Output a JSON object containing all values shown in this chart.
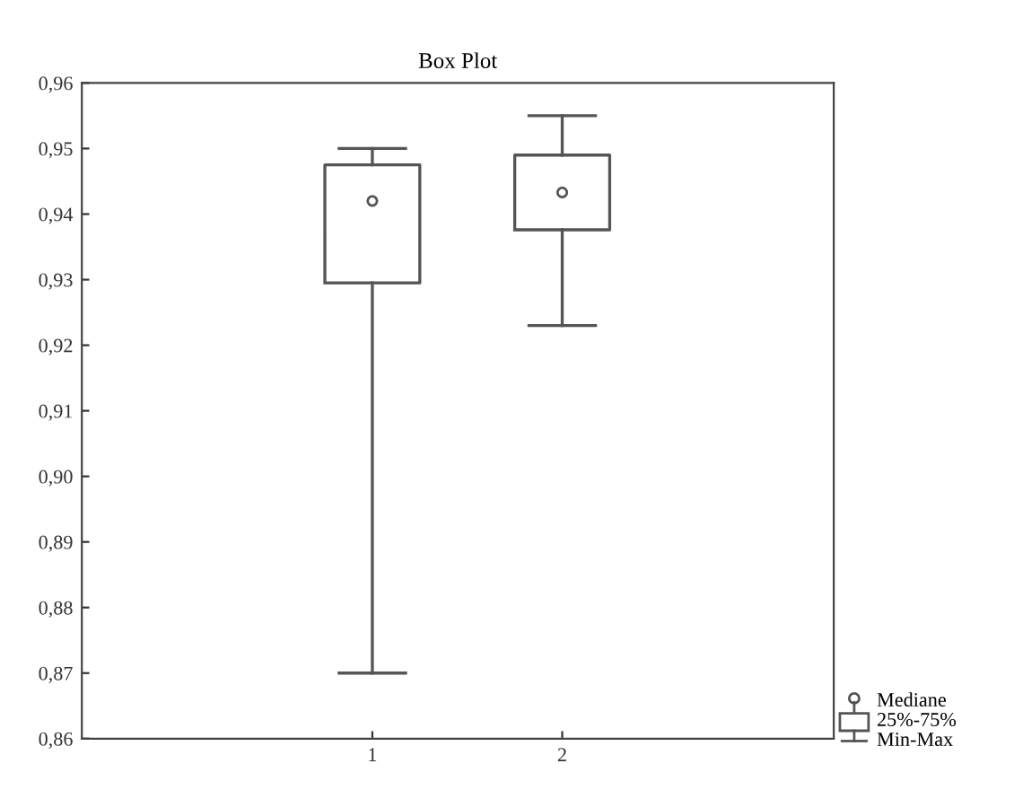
{
  "chart_data": {
    "type": "box",
    "title": "Box Plot",
    "categories": [
      "1",
      "2"
    ],
    "boxes": [
      {
        "low": 0.87,
        "q1": 0.9295,
        "median": 0.942,
        "q3": 0.9475,
        "high": 0.95
      },
      {
        "low": 0.923,
        "q1": 0.9376,
        "median": 0.9433,
        "q3": 0.949,
        "high": 0.955
      }
    ],
    "ylim": [
      0.86,
      0.96
    ],
    "yticks": [
      {
        "value": 0.86,
        "label": "0,86"
      },
      {
        "value": 0.87,
        "label": "0,87"
      },
      {
        "value": 0.88,
        "label": "0,88"
      },
      {
        "value": 0.89,
        "label": "0,89"
      },
      {
        "value": 0.9,
        "label": "0,90"
      },
      {
        "value": 0.91,
        "label": "0,91"
      },
      {
        "value": 0.92,
        "label": "0,92"
      },
      {
        "value": 0.93,
        "label": "0,93"
      },
      {
        "value": 0.94,
        "label": "0,94"
      },
      {
        "value": 0.95,
        "label": "0,95"
      },
      {
        "value": 0.96,
        "label": "0,96"
      }
    ],
    "grid": false,
    "annotations": [
      "Mediane",
      "25%-75%",
      "Min-Max"
    ]
  }
}
